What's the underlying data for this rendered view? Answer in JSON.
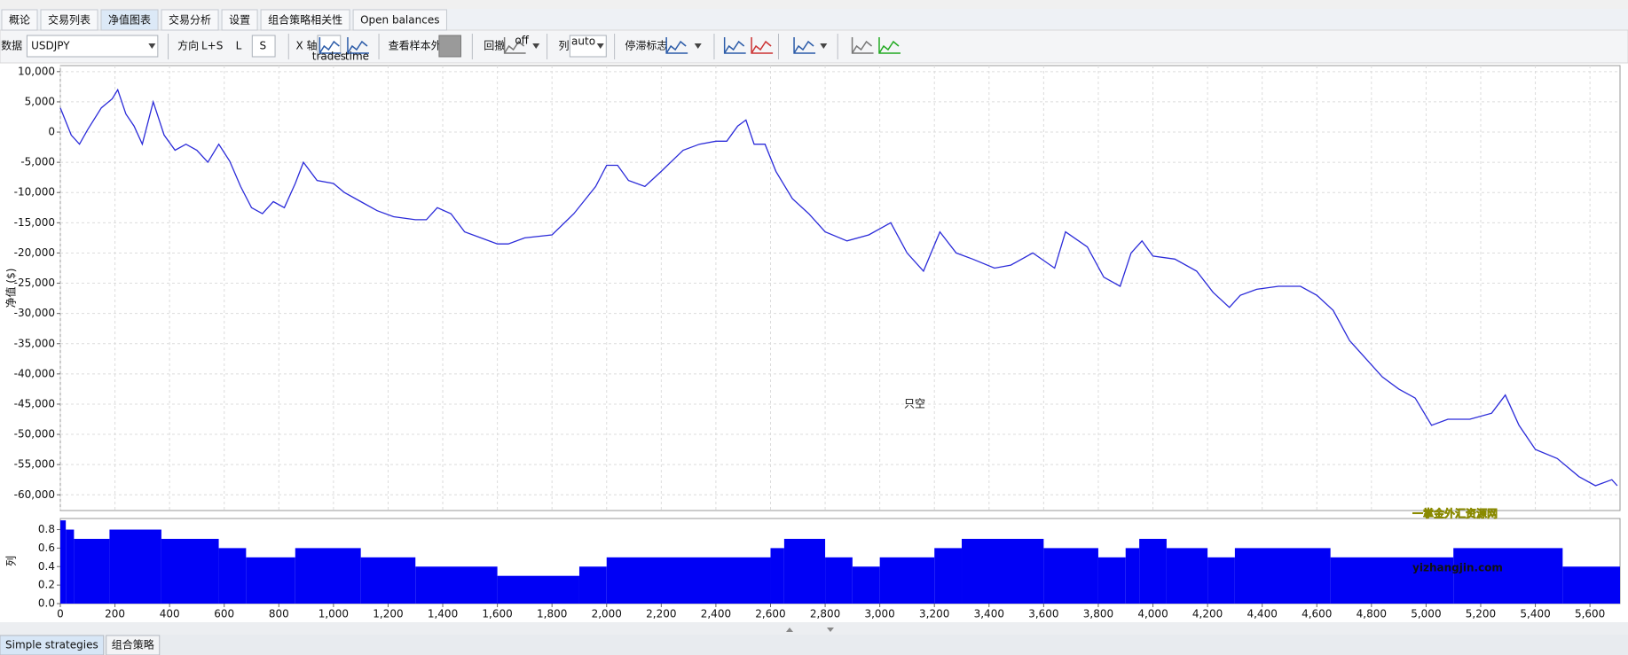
{
  "tabs": [
    "概论",
    "交易列表",
    "净值图表",
    "交易分析",
    "设置",
    "组合策略相关性",
    "Open balances"
  ],
  "active_tab": 2,
  "toolbar": {
    "data_label": "数据",
    "symbol": "USDJPY",
    "direction_label": "方向",
    "directions": [
      "L+S",
      "L",
      "S"
    ],
    "x_axis_label": "X 轴",
    "x_axis_options": [
      "trades",
      "time"
    ],
    "out_of_sample_label": "查看样本外",
    "drawdown_label": "回撤",
    "drawdown_state": "off",
    "series_label": "列",
    "series_option": "auto",
    "stagnation_label": "停滞标志"
  },
  "chart_data": [
    {
      "type": "line",
      "y_label": "净值 ($)",
      "annotation": "只空",
      "color": "#2b2bd9",
      "grid": true,
      "x": [
        0,
        40,
        70,
        100,
        150,
        190,
        210,
        240,
        270,
        300,
        340,
        380,
        420,
        460,
        500,
        540,
        580,
        620,
        660,
        700,
        740,
        780,
        820,
        860,
        890,
        940,
        1000,
        1040,
        1100,
        1160,
        1220,
        1300,
        1340,
        1380,
        1430,
        1480,
        1540,
        1600,
        1640,
        1700,
        1800,
        1880,
        1960,
        2000,
        2040,
        2080,
        2140,
        2200,
        2280,
        2340,
        2400,
        2440,
        2480,
        2510,
        2540,
        2580,
        2620,
        2680,
        2740,
        2800,
        2880,
        2960,
        3040,
        3100,
        3160,
        3220,
        3280,
        3340,
        3420,
        3480,
        3560,
        3640,
        3680,
        3760,
        3820,
        3880,
        3920,
        3960,
        4000,
        4080,
        4160,
        4220,
        4280,
        4320,
        4380,
        4460,
        4540,
        4600,
        4660,
        4720,
        4780,
        4840,
        4900,
        4960,
        5020,
        5080,
        5160,
        5240,
        5290,
        5340,
        5400,
        5480,
        5560,
        5620,
        5680,
        5700
      ],
      "values": [
        4000,
        -500,
        -2000,
        400,
        4000,
        5500,
        7000,
        3000,
        1000,
        -2000,
        5000,
        -500,
        -3000,
        -2000,
        -3000,
        -5000,
        -2000,
        -4800,
        -9000,
        -12500,
        -13500,
        -11500,
        -12500,
        -8500,
        -5000,
        -8000,
        -8500,
        -10000,
        -11500,
        -13000,
        -14000,
        -14500,
        -14500,
        -12500,
        -13500,
        -16500,
        -17500,
        -18500,
        -18500,
        -17500,
        -17000,
        -13500,
        -9000,
        -5500,
        -5500,
        -8000,
        -9000,
        -6500,
        -3000,
        -2000,
        -1500,
        -1500,
        1000,
        2000,
        -2000,
        -2000,
        -6500,
        -11000,
        -13500,
        -16500,
        -18000,
        -17000,
        -15000,
        -20000,
        -23000,
        -16500,
        -20000,
        -21000,
        -22500,
        -22000,
        -20000,
        -22500,
        -16500,
        -19000,
        -24000,
        -25500,
        -20000,
        -18000,
        -20500,
        -21000,
        -23000,
        -26500,
        -29000,
        -27000,
        -26000,
        -25500,
        -25500,
        -27000,
        -29500,
        -34500,
        -37500,
        -40500,
        -42500,
        -44000,
        -48500,
        -47500,
        -47500,
        -46500,
        -43500,
        -48500,
        -52500,
        -54000,
        -57000,
        -58500,
        -57500,
        -58500
      ],
      "xlim": [
        0,
        5710
      ],
      "ylim": [
        -62600,
        11000
      ],
      "yticks": [
        {
          "value": 10000,
          "label": "10,000"
        },
        {
          "value": 5000,
          "label": "5,000"
        },
        0,
        {
          "value": -5000,
          "label": "-5,000"
        },
        {
          "value": -10000,
          "label": "-10,000"
        },
        {
          "value": -15000,
          "label": "-15,000"
        },
        {
          "value": -20000,
          "label": "-20,000"
        },
        {
          "value": -25000,
          "label": "-25,000"
        },
        {
          "value": -30000,
          "label": "-30,000"
        },
        {
          "value": -35000,
          "label": "-35,000"
        },
        {
          "value": -40000,
          "label": "-40,000"
        },
        {
          "value": -45000,
          "label": "-45,000"
        },
        {
          "value": -50000,
          "label": "-50,000"
        },
        {
          "value": -55000,
          "label": "-55,000"
        },
        {
          "value": -60000,
          "label": "-60,000"
        }
      ],
      "xticks": [
        0,
        200,
        400,
        600,
        800,
        {
          "value": 1000,
          "label": "1,000"
        },
        {
          "value": 1200,
          "label": "1,200"
        },
        {
          "value": 1400,
          "label": "1,400"
        },
        {
          "value": 1600,
          "label": "1,600"
        },
        {
          "value": 1800,
          "label": "1,800"
        },
        {
          "value": 2000,
          "label": "2,000"
        },
        {
          "value": 2200,
          "label": "2,200"
        },
        {
          "value": 2400,
          "label": "2,400"
        },
        {
          "value": 2600,
          "label": "2,600"
        },
        {
          "value": 2800,
          "label": "2,800"
        },
        {
          "value": 3000,
          "label": "3,000"
        },
        {
          "value": 3200,
          "label": "3,200"
        },
        {
          "value": 3400,
          "label": "3,400"
        },
        {
          "value": 3600,
          "label": "3,600"
        },
        {
          "value": 3800,
          "label": "3,800"
        },
        {
          "value": 4000,
          "label": "4,000"
        },
        {
          "value": 4200,
          "label": "4,200"
        },
        {
          "value": 4400,
          "label": "4,400"
        },
        {
          "value": 4600,
          "label": "4,600"
        },
        {
          "value": 4800,
          "label": "4,800"
        },
        {
          "value": 5000,
          "label": "5,000"
        },
        {
          "value": 5200,
          "label": "5,200"
        },
        {
          "value": 5400,
          "label": "5,400"
        },
        {
          "value": 5600,
          "label": "5,600"
        }
      ]
    },
    {
      "type": "step",
      "y_label": "列",
      "color": "#0000f5",
      "x": [
        0,
        20,
        50,
        180,
        370,
        580,
        680,
        860,
        1100,
        1300,
        1600,
        1900,
        2000,
        2600,
        2650,
        2800,
        2900,
        3000,
        3200,
        3300,
        3600,
        3800,
        3900,
        3950,
        4050,
        4200,
        4300,
        4650,
        5100,
        5500
      ],
      "values": [
        0.9,
        0.8,
        0.7,
        0.8,
        0.7,
        0.6,
        0.5,
        0.6,
        0.5,
        0.4,
        0.3,
        0.4,
        0.5,
        0.6,
        0.7,
        0.5,
        0.4,
        0.5,
        0.6,
        0.7,
        0.6,
        0.5,
        0.6,
        0.7,
        0.6,
        0.5,
        0.6,
        0.5,
        0.6,
        0.4
      ],
      "xlim": [
        0,
        5710
      ],
      "ylim": [
        0,
        0.92
      ],
      "yticks": [
        {
          "value": 0,
          "label": "0.0"
        },
        0.2,
        0.4,
        0.6,
        0.8
      ]
    }
  ],
  "watermark": [
    "一掌金外汇资源网",
    "yizhangjin.com"
  ],
  "bottom_tabs": [
    "Simple strategies",
    "组合策略"
  ]
}
